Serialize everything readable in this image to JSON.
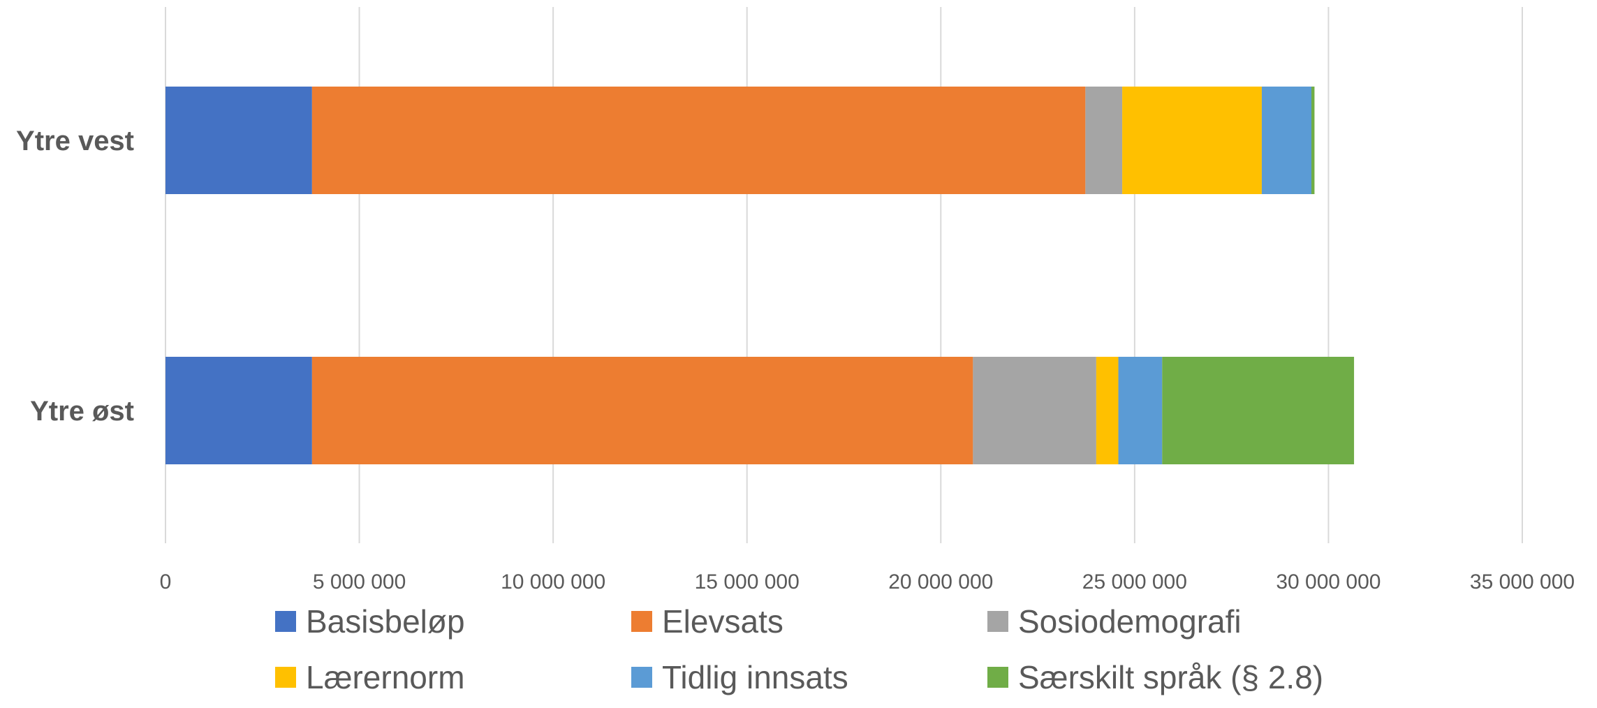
{
  "chart_data": {
    "type": "bar",
    "orientation": "horizontal",
    "stacked": true,
    "categories": [
      "Ytre vest",
      "Ytre øst"
    ],
    "series": [
      {
        "name": "Basisbeløp",
        "color": "#4472C4",
        "values": [
          3780000,
          3780000
        ]
      },
      {
        "name": "Elevsats",
        "color": "#ED7D31",
        "values": [
          19950000,
          17050000
        ]
      },
      {
        "name": "Sosiodemografi",
        "color": "#A5A5A5",
        "values": [
          950000,
          3180000
        ]
      },
      {
        "name": "Lærernorm",
        "color": "#FFC000",
        "values": [
          3600000,
          570000
        ]
      },
      {
        "name": "Tidlig innsats",
        "color": "#5B9BD5",
        "values": [
          1280000,
          1130000
        ]
      },
      {
        "name": "Særskilt språk (§ 2.8)",
        "color": "#70AD47",
        "values": [
          80000,
          4950000
        ]
      }
    ],
    "xlim": [
      0,
      35000000
    ],
    "xticks": [
      0,
      5000000,
      10000000,
      15000000,
      20000000,
      25000000,
      30000000,
      35000000
    ],
    "xtick_labels": [
      "0",
      "5 000 000",
      "10 000 000",
      "15 000 000",
      "20 000 000",
      "25 000 000",
      "30 000 000",
      "35 000 000"
    ],
    "grid": true,
    "legend_position": "bottom",
    "title": "",
    "xlabel": "",
    "ylabel": ""
  }
}
